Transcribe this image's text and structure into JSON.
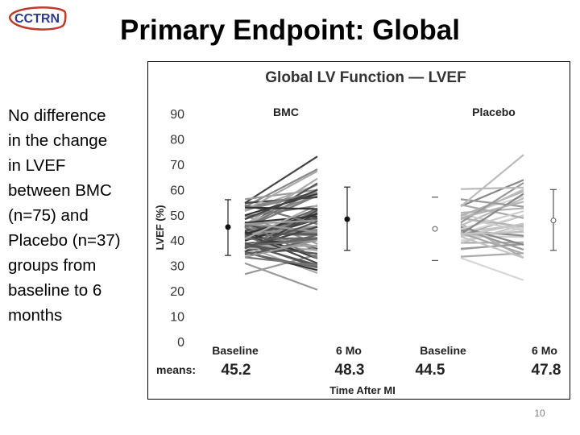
{
  "slide": {
    "title": "Primary Endpoint: Global",
    "logo_text": "CCTRN",
    "body_lines": [
      "No difference",
      "in the change",
      "in LVEF",
      "between BMC",
      "(n=75) and",
      "Placebo (n=37)",
      "groups from",
      "baseline to 6",
      "months"
    ],
    "page_number": "10"
  },
  "colors": {
    "logo_red": "#c0392b",
    "logo_blue": "#2b3a8a"
  },
  "chart_data": {
    "type": "line",
    "title": "Global LV Function — LVEF",
    "ylabel": "LVEF (%)",
    "xlabel": "Time After MI",
    "ylim": [
      0,
      90
    ],
    "yticks": [
      0,
      10,
      20,
      30,
      40,
      50,
      60,
      70,
      80,
      90
    ],
    "groups": [
      {
        "name": "BMC",
        "color": "#555555",
        "timepoints": [
          "Baseline",
          "6 Mo"
        ],
        "means": [
          45.2,
          48.3
        ],
        "sd_baseline": [
          34,
          56
        ],
        "sd_6mo": [
          36,
          61
        ],
        "marker": "filled"
      },
      {
        "name": "Placebo",
        "color": "#b3b3b3",
        "timepoints": [
          "Baseline",
          "6 Mo"
        ],
        "means": [
          44.5,
          47.8
        ],
        "sd_baseline": [
          32,
          57
        ],
        "sd_6mo": [
          36,
          60
        ],
        "marker": "open"
      }
    ],
    "means_label": "means:",
    "mean_values": [
      "45.2",
      "48.3",
      "44.5",
      "47.8"
    ]
  }
}
